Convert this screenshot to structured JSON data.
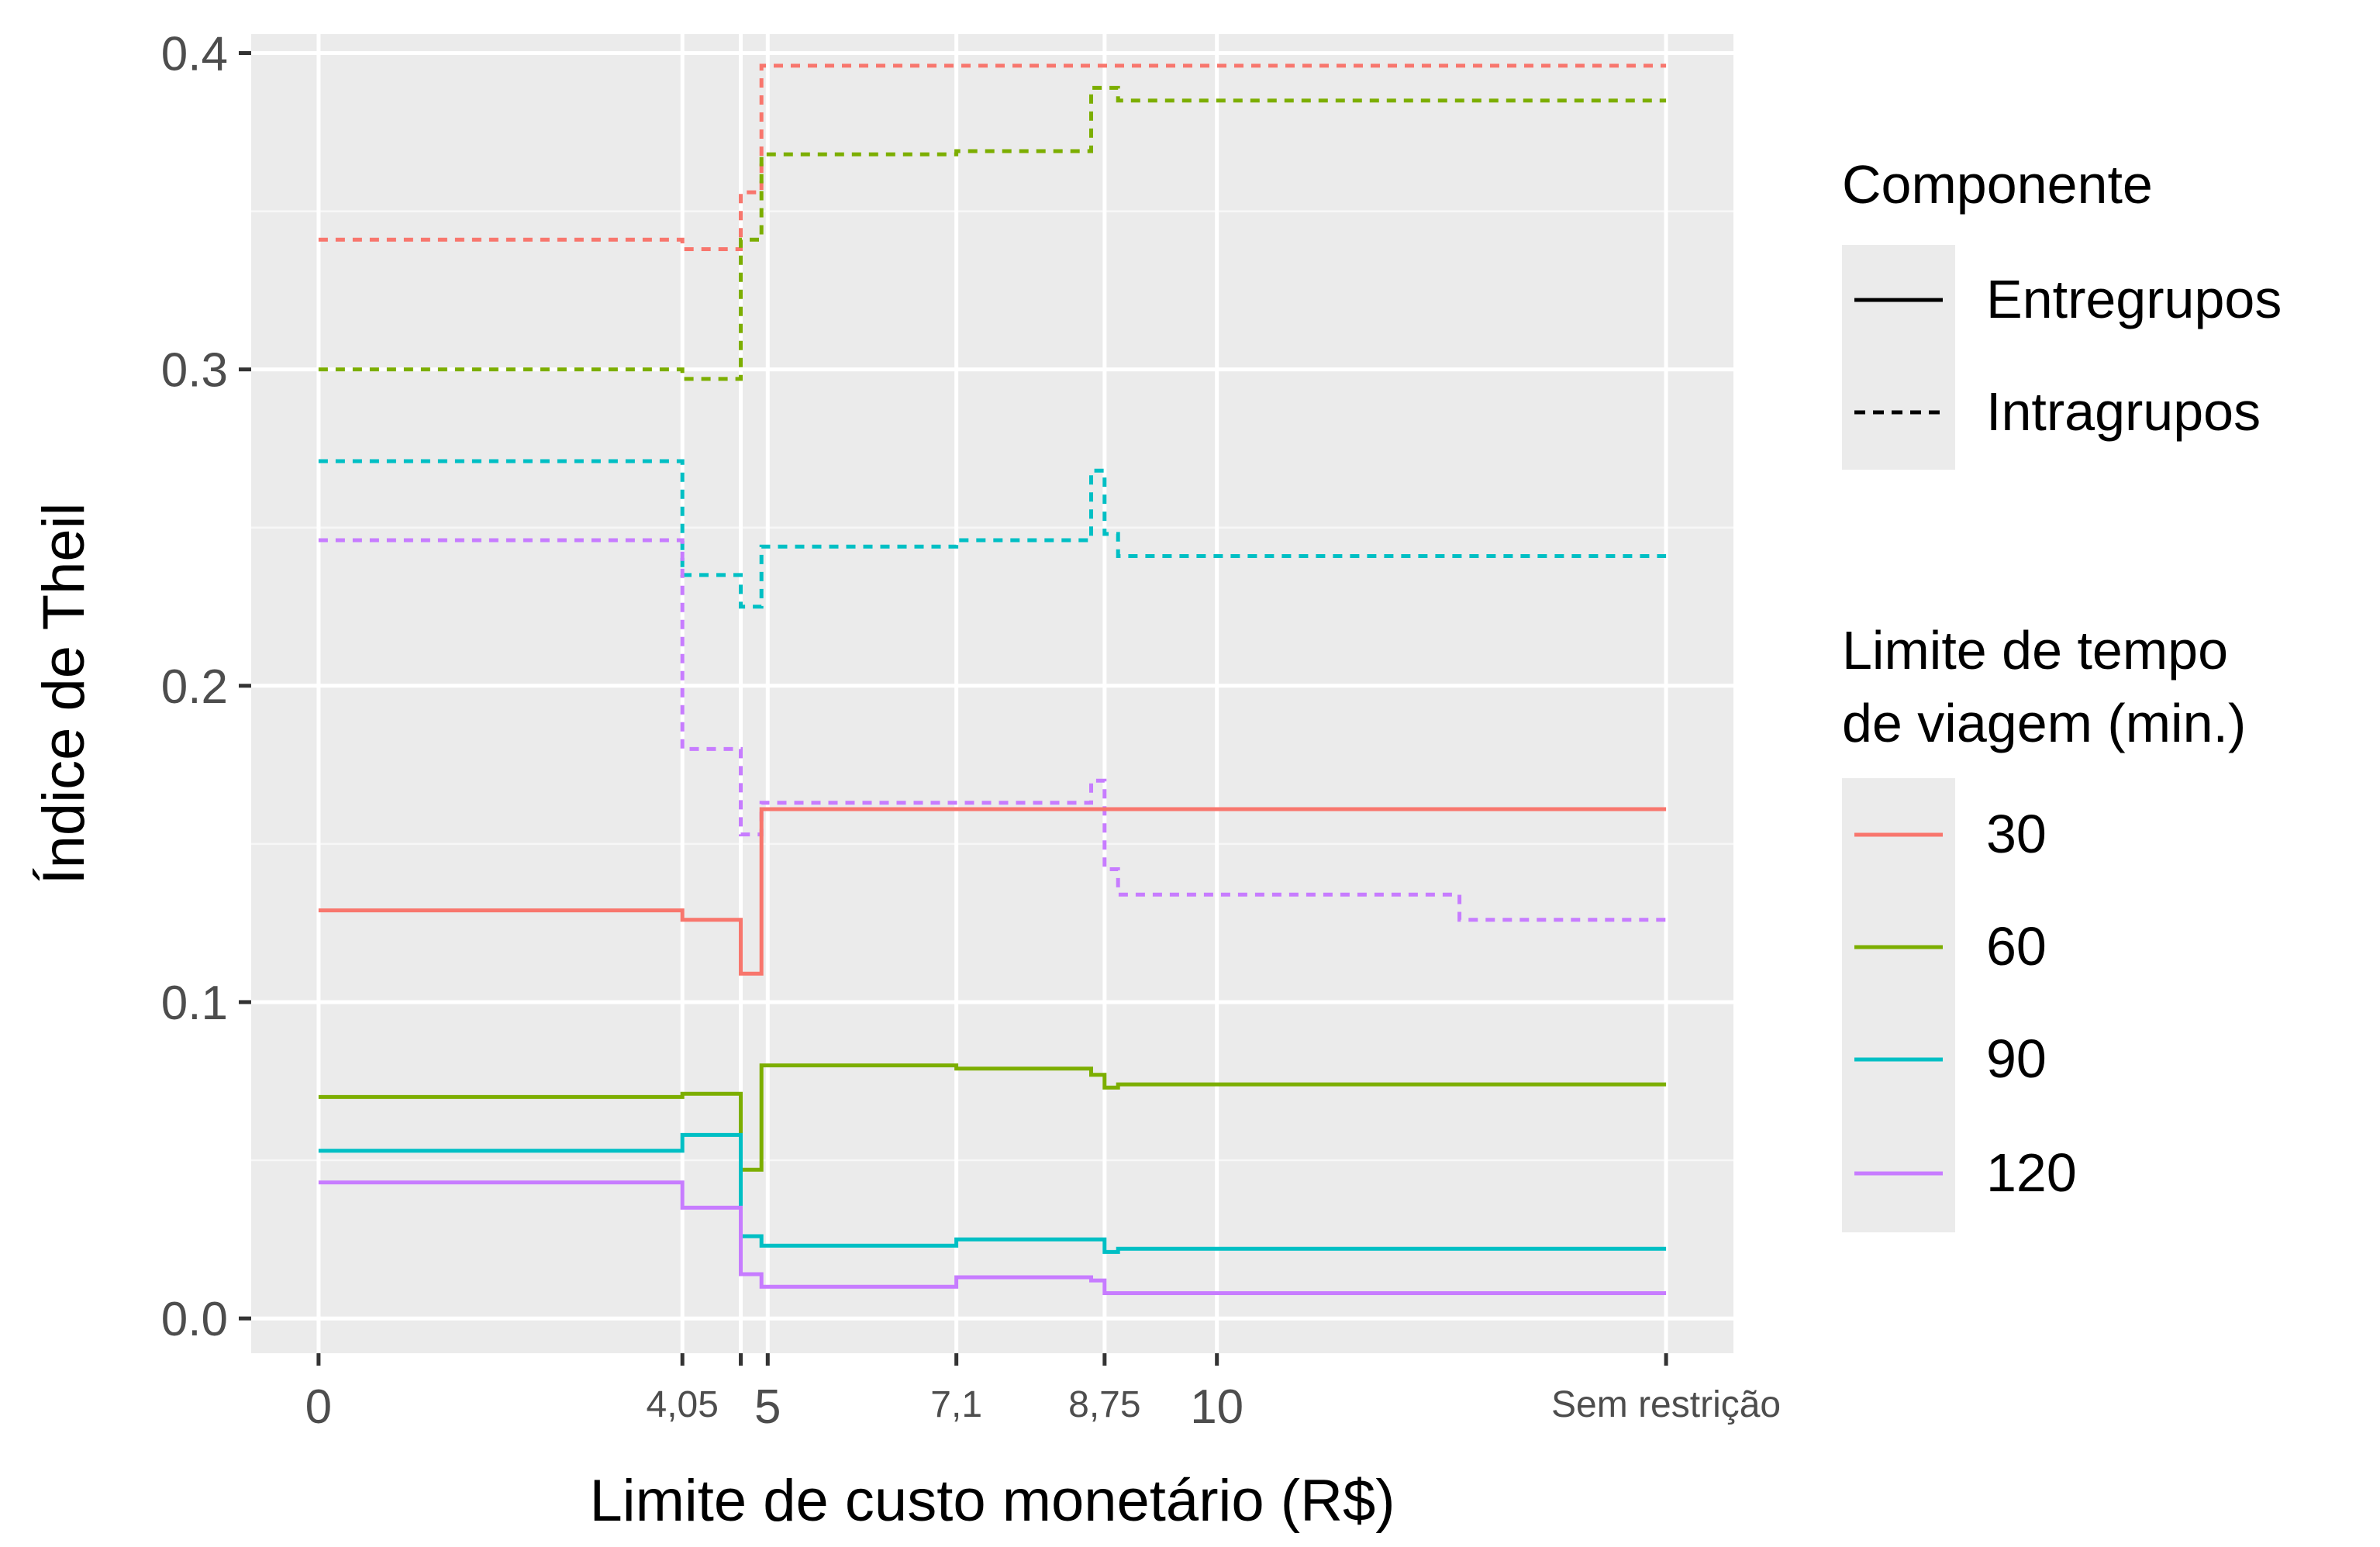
{
  "chart_data": {
    "type": "line",
    "step": true,
    "xlabel": "Limite de custo monetário (R$)",
    "ylabel": "Índice de Theil",
    "ylim": [
      -0.011,
      0.406
    ],
    "xlim": [
      -0.75,
      15.75
    ],
    "y_ticks": [
      {
        "value": 0.0,
        "label": "0.0"
      },
      {
        "value": 0.1,
        "label": "0.1"
      },
      {
        "value": 0.2,
        "label": "0.2"
      },
      {
        "value": 0.3,
        "label": "0.3"
      },
      {
        "value": 0.4,
        "label": "0.4"
      }
    ],
    "x_ticks": [
      {
        "value": 0,
        "label": "0",
        "size": "large"
      },
      {
        "value": 4.05,
        "label": "4,05",
        "size": "small"
      },
      {
        "value": 4.7,
        "label": "",
        "size": "none"
      },
      {
        "value": 5,
        "label": "5",
        "size": "large"
      },
      {
        "value": 7.1,
        "label": "7,1",
        "size": "small"
      },
      {
        "value": 8.75,
        "label": "8,75",
        "size": "small"
      },
      {
        "value": 10,
        "label": "10",
        "size": "large"
      },
      {
        "value": 15,
        "label": "Sem restrição",
        "size": "small"
      }
    ],
    "grid": true,
    "legend_position": "right",
    "colors": {
      "30": "#F8766D",
      "60": "#7CAE00",
      "90": "#00BFC4",
      "120": "#C77CFF"
    },
    "series": [
      {
        "time": "30",
        "component": "Intragrupos",
        "points": [
          [
            0,
            0.341
          ],
          [
            4.05,
            0.341
          ],
          [
            4.05,
            0.338
          ],
          [
            4.7,
            0.338
          ],
          [
            4.7,
            0.356
          ],
          [
            4.93,
            0.356
          ],
          [
            4.93,
            0.396
          ],
          [
            15,
            0.396
          ]
        ]
      },
      {
        "time": "60",
        "component": "Intragrupos",
        "points": [
          [
            0,
            0.3
          ],
          [
            4.05,
            0.3
          ],
          [
            4.05,
            0.297
          ],
          [
            4.7,
            0.297
          ],
          [
            4.7,
            0.341
          ],
          [
            4.93,
            0.341
          ],
          [
            4.93,
            0.368
          ],
          [
            7.1,
            0.368
          ],
          [
            7.1,
            0.369
          ],
          [
            8.6,
            0.369
          ],
          [
            8.6,
            0.389
          ],
          [
            8.9,
            0.389
          ],
          [
            8.9,
            0.385
          ],
          [
            15,
            0.385
          ]
        ]
      },
      {
        "time": "90",
        "component": "Intragrupos",
        "points": [
          [
            0,
            0.271
          ],
          [
            4.05,
            0.271
          ],
          [
            4.05,
            0.235
          ],
          [
            4.7,
            0.235
          ],
          [
            4.7,
            0.225
          ],
          [
            4.93,
            0.225
          ],
          [
            4.93,
            0.244
          ],
          [
            7.1,
            0.244
          ],
          [
            7.1,
            0.246
          ],
          [
            8.6,
            0.246
          ],
          [
            8.6,
            0.268
          ],
          [
            8.75,
            0.268
          ],
          [
            8.75,
            0.248
          ],
          [
            8.9,
            0.248
          ],
          [
            8.9,
            0.241
          ],
          [
            15,
            0.241
          ]
        ]
      },
      {
        "time": "120",
        "component": "Intragrupos",
        "points": [
          [
            0,
            0.246
          ],
          [
            4.05,
            0.246
          ],
          [
            4.05,
            0.18
          ],
          [
            4.7,
            0.18
          ],
          [
            4.7,
            0.153
          ],
          [
            4.93,
            0.153
          ],
          [
            4.93,
            0.163
          ],
          [
            8.6,
            0.163
          ],
          [
            8.6,
            0.17
          ],
          [
            8.75,
            0.17
          ],
          [
            8.75,
            0.142
          ],
          [
            8.9,
            0.142
          ],
          [
            8.9,
            0.134
          ],
          [
            12.7,
            0.134
          ],
          [
            12.7,
            0.126
          ],
          [
            15,
            0.126
          ]
        ]
      },
      {
        "time": "30",
        "component": "Entregrupos",
        "points": [
          [
            0,
            0.129
          ],
          [
            4.05,
            0.129
          ],
          [
            4.05,
            0.126
          ],
          [
            4.7,
            0.126
          ],
          [
            4.7,
            0.109
          ],
          [
            4.93,
            0.109
          ],
          [
            4.93,
            0.161
          ],
          [
            15,
            0.161
          ]
        ]
      },
      {
        "time": "60",
        "component": "Entregrupos",
        "points": [
          [
            0,
            0.07
          ],
          [
            4.05,
            0.07
          ],
          [
            4.05,
            0.071
          ],
          [
            4.7,
            0.071
          ],
          [
            4.7,
            0.047
          ],
          [
            4.93,
            0.047
          ],
          [
            4.93,
            0.08
          ],
          [
            7.1,
            0.08
          ],
          [
            7.1,
            0.079
          ],
          [
            8.6,
            0.079
          ],
          [
            8.6,
            0.077
          ],
          [
            8.75,
            0.077
          ],
          [
            8.75,
            0.073
          ],
          [
            8.9,
            0.073
          ],
          [
            8.9,
            0.074
          ],
          [
            15,
            0.074
          ]
        ]
      },
      {
        "time": "90",
        "component": "Entregrupos",
        "points": [
          [
            0,
            0.053
          ],
          [
            4.05,
            0.053
          ],
          [
            4.05,
            0.058
          ],
          [
            4.7,
            0.058
          ],
          [
            4.7,
            0.026
          ],
          [
            4.93,
            0.026
          ],
          [
            4.93,
            0.023
          ],
          [
            7.1,
            0.023
          ],
          [
            7.1,
            0.025
          ],
          [
            8.75,
            0.025
          ],
          [
            8.75,
            0.021
          ],
          [
            8.9,
            0.021
          ],
          [
            8.9,
            0.022
          ],
          [
            15,
            0.022
          ]
        ]
      },
      {
        "time": "120",
        "component": "Entregrupos",
        "points": [
          [
            0,
            0.043
          ],
          [
            4.05,
            0.043
          ],
          [
            4.05,
            0.035
          ],
          [
            4.7,
            0.035
          ],
          [
            4.7,
            0.014
          ],
          [
            4.93,
            0.014
          ],
          [
            4.93,
            0.01
          ],
          [
            7.1,
            0.01
          ],
          [
            7.1,
            0.013
          ],
          [
            8.6,
            0.013
          ],
          [
            8.6,
            0.012
          ],
          [
            8.75,
            0.012
          ],
          [
            8.75,
            0.008
          ],
          [
            15,
            0.008
          ]
        ]
      }
    ]
  },
  "legend": {
    "component_title": "Componente",
    "components": [
      {
        "key": "Entregrupos",
        "label": "Entregrupos",
        "dash": "solid"
      },
      {
        "key": "Intragrupos",
        "label": "Intragrupos",
        "dash": "dashed"
      }
    ],
    "time_title_line1": "Limite de tempo",
    "time_title_line2": "de viagem (min.)",
    "times": [
      {
        "key": "30",
        "label": "30"
      },
      {
        "key": "60",
        "label": "60"
      },
      {
        "key": "90",
        "label": "90"
      },
      {
        "key": "120",
        "label": "120"
      }
    ]
  }
}
